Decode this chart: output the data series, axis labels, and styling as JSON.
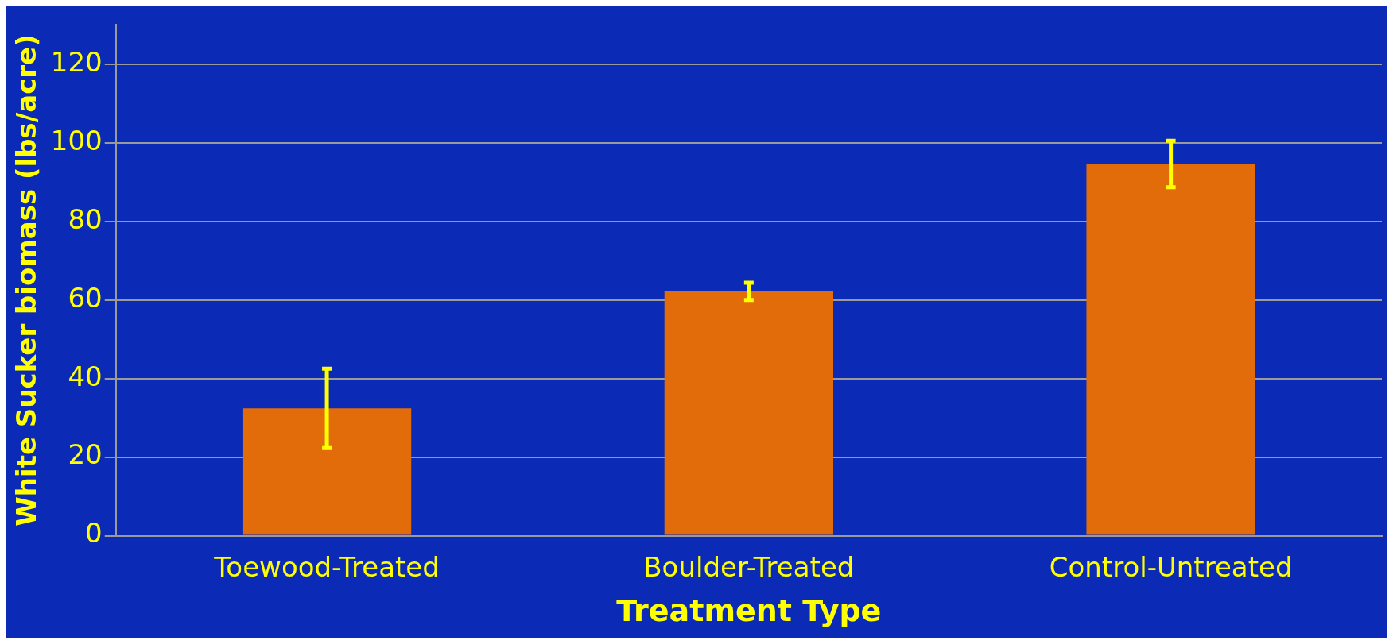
{
  "chart_data": {
    "type": "bar",
    "xlabel": "Treatment Type",
    "ylabel": "White Sucker biomass (lbs/acre)",
    "categories": [
      "Toewood-Treated",
      "Boulder-Treated",
      "Control-Untreated"
    ],
    "series": [
      {
        "color": "#e36c0a",
        "values": [
          32.4,
          62.2,
          94.6
        ],
        "errors": [
          10.1,
          2.2,
          5.9
        ]
      }
    ],
    "ylim": [
      0,
      130
    ],
    "yticks": [
      0,
      20,
      40,
      60,
      80,
      100,
      120
    ],
    "grid": "y",
    "legend": false
  }
}
